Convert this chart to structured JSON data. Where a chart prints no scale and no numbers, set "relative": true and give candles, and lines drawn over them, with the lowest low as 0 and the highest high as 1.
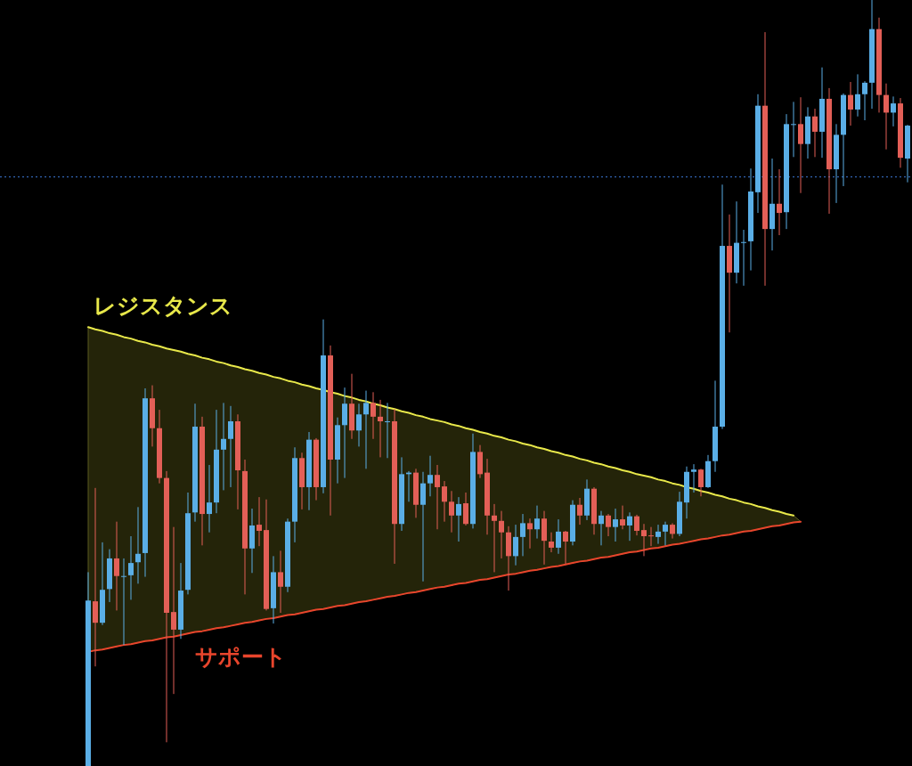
{
  "chart_data": {
    "type": "candlestick",
    "relative": true,
    "categories": [
      null,
      null,
      null,
      null,
      null,
      null,
      null,
      null,
      null,
      null,
      null,
      null,
      null,
      null,
      null,
      null,
      null,
      null,
      null,
      null,
      null,
      null,
      null,
      null,
      null,
      null,
      null,
      null,
      null,
      null,
      null,
      null,
      null,
      null,
      null,
      null,
      null,
      null,
      null,
      null,
      null,
      null,
      null,
      null,
      null,
      null,
      null,
      null,
      null,
      null,
      null,
      null,
      null,
      null,
      null,
      null,
      null,
      null,
      null,
      null,
      null,
      null,
      null,
      null,
      null,
      null,
      null,
      null,
      null,
      null,
      null,
      null,
      null,
      null,
      null,
      null,
      null,
      null,
      null,
      null,
      null,
      null,
      null,
      null,
      null,
      null,
      null,
      null,
      null,
      null,
      null,
      null,
      null,
      null,
      null,
      null,
      null,
      null,
      null,
      null,
      null,
      null,
      null,
      null,
      null,
      null,
      null,
      null,
      null,
      null,
      null,
      null,
      null,
      null,
      null,
      null
    ],
    "ohlc": [
      [
        0,
        0.253,
        0,
        0.216
      ],
      [
        0.215,
        0.363,
        0.13,
        0.187
      ],
      [
        0.187,
        0.292,
        0.184,
        0.23
      ],
      [
        0.231,
        0.283,
        0.214,
        0.271
      ],
      [
        0.271,
        0.319,
        0.203,
        0.248
      ],
      [
        0.248,
        0.271,
        0.158,
        0.248
      ],
      [
        0.249,
        0.3,
        0.217,
        0.265
      ],
      [
        0.266,
        0.338,
        0.238,
        0.277
      ],
      [
        0.278,
        0.493,
        0.247,
        0.48
      ],
      [
        0.48,
        0.497,
        0.417,
        0.441
      ],
      [
        0.441,
        0.465,
        0.369,
        0.376
      ],
      [
        0.376,
        0.385,
        0.031,
        0.2
      ],
      [
        0.201,
        0.312,
        0.094,
        0.178
      ],
      [
        0.178,
        0.265,
        0.166,
        0.229
      ],
      [
        0.23,
        0.357,
        0.224,
        0.33
      ],
      [
        0.331,
        0.473,
        0.319,
        0.443
      ],
      [
        0.443,
        0.456,
        0.288,
        0.329
      ],
      [
        0.329,
        0.393,
        0.305,
        0.344
      ],
      [
        0.344,
        0.465,
        0.33,
        0.413
      ],
      [
        0.413,
        0.474,
        0.36,
        0.427
      ],
      [
        0.427,
        0.47,
        0.364,
        0.45
      ],
      [
        0.45,
        0.459,
        0.335,
        0.386
      ],
      [
        0.385,
        0.4,
        0.224,
        0.284
      ],
      [
        0.284,
        0.336,
        0.252,
        0.314
      ],
      [
        0.315,
        0.351,
        0.287,
        0.307
      ],
      [
        0.308,
        0.348,
        0.203,
        0.205
      ],
      [
        0.206,
        0.274,
        0.186,
        0.253
      ],
      [
        0.253,
        0.281,
        0.2,
        0.234
      ],
      [
        0.234,
        0.323,
        0.227,
        0.319
      ],
      [
        0.319,
        0.416,
        0.292,
        0.402
      ],
      [
        0.402,
        0.409,
        0.335,
        0.364
      ],
      [
        0.364,
        0.436,
        0.334,
        0.426
      ],
      [
        0.426,
        0.428,
        0.347,
        0.364
      ],
      [
        0.364,
        0.583,
        0.356,
        0.536
      ],
      [
        0.536,
        0.549,
        0.327,
        0.4
      ],
      [
        0.4,
        0.455,
        0.369,
        0.445
      ],
      [
        0.445,
        0.494,
        0.376,
        0.473
      ],
      [
        0.473,
        0.512,
        0.427,
        0.438
      ],
      [
        0.438,
        0.473,
        0.417,
        0.459
      ],
      [
        0.459,
        0.49,
        0.388,
        0.474
      ],
      [
        0.474,
        0.488,
        0.427,
        0.456
      ],
      [
        0.456,
        0.478,
        0.403,
        0.45
      ],
      [
        0.45,
        0.474,
        0.402,
        0.45
      ],
      [
        0.45,
        0.466,
        0.264,
        0.316
      ],
      [
        0.316,
        0.403,
        0.307,
        0.381
      ],
      [
        0.381,
        0.385,
        0.345,
        0.383
      ],
      [
        0.383,
        0.388,
        0.324,
        0.341
      ],
      [
        0.341,
        0.384,
        0.241,
        0.369
      ],
      [
        0.369,
        0.405,
        0.352,
        0.38
      ],
      [
        0.38,
        0.393,
        0.309,
        0.364
      ],
      [
        0.365,
        0.372,
        0.319,
        0.345
      ],
      [
        0.345,
        0.359,
        0.305,
        0.327
      ],
      [
        0.327,
        0.351,
        0.293,
        0.342
      ],
      [
        0.343,
        0.357,
        0.314,
        0.316
      ],
      [
        0.316,
        0.434,
        0.31,
        0.41
      ],
      [
        0.41,
        0.419,
        0.376,
        0.381
      ],
      [
        0.383,
        0.401,
        0.302,
        0.327
      ],
      [
        0.327,
        0.342,
        0.253,
        0.32
      ],
      [
        0.32,
        0.333,
        0.271,
        0.305
      ],
      [
        0.305,
        0.313,
        0.229,
        0.274
      ],
      [
        0.274,
        0.315,
        0.262,
        0.299
      ],
      [
        0.299,
        0.329,
        0.274,
        0.317
      ],
      [
        0.317,
        0.323,
        0.284,
        0.309
      ],
      [
        0.309,
        0.34,
        0.297,
        0.323
      ],
      [
        0.323,
        0.333,
        0.263,
        0.294
      ],
      [
        0.293,
        0.305,
        0.279,
        0.285
      ],
      [
        0.285,
        0.322,
        0.277,
        0.306
      ],
      [
        0.306,
        0.307,
        0.264,
        0.293
      ],
      [
        0.293,
        0.347,
        0.288,
        0.341
      ],
      [
        0.341,
        0.35,
        0.315,
        0.327
      ],
      [
        0.327,
        0.374,
        0.321,
        0.362
      ],
      [
        0.362,
        0.364,
        0.302,
        0.316
      ],
      [
        0.316,
        0.333,
        0.288,
        0.327
      ],
      [
        0.327,
        0.329,
        0.3,
        0.312
      ],
      [
        0.312,
        0.336,
        0.293,
        0.322
      ],
      [
        0.322,
        0.34,
        0.309,
        0.314
      ],
      [
        0.314,
        0.331,
        0.294,
        0.326
      ],
      [
        0.326,
        0.328,
        0.301,
        0.307
      ],
      [
        0.308,
        0.316,
        0.274,
        0.3
      ],
      [
        0.301,
        0.312,
        0.287,
        0.3
      ],
      [
        0.299,
        0.315,
        0.29,
        0.306
      ],
      [
        0.306,
        0.319,
        0.288,
        0.315
      ],
      [
        0.315,
        0.317,
        0.297,
        0.303
      ],
      [
        0.303,
        0.358,
        0.3,
        0.345
      ],
      [
        0.344,
        0.391,
        0.323,
        0.384
      ],
      [
        0.384,
        0.394,
        0.357,
        0.387
      ],
      [
        0.387,
        0.388,
        0.352,
        0.364
      ],
      [
        0.364,
        0.406,
        0.363,
        0.398
      ],
      [
        0.398,
        0.503,
        0.384,
        0.443
      ],
      [
        0.443,
        0.759,
        0.44,
        0.679
      ],
      [
        0.679,
        0.72,
        0.566,
        0.644
      ],
      [
        0.644,
        0.737,
        0.63,
        0.683
      ],
      [
        0.684,
        0.7,
        0.627,
        0.684
      ],
      [
        0.685,
        0.78,
        0.647,
        0.75
      ],
      [
        0.749,
        0.877,
        0.722,
        0.862
      ],
      [
        0.862,
        0.958,
        0.627,
        0.701
      ],
      [
        0.701,
        0.793,
        0.673,
        0.734
      ],
      [
        0.734,
        0.779,
        0.693,
        0.722
      ],
      [
        0.723,
        0.851,
        0.701,
        0.838
      ],
      [
        0.838,
        0.867,
        0.795,
        0.838
      ],
      [
        0.838,
        0.873,
        0.748,
        0.812
      ],
      [
        0.812,
        0.86,
        0.793,
        0.848
      ],
      [
        0.848,
        0.858,
        0.795,
        0.828
      ],
      [
        0.828,
        0.912,
        0.794,
        0.871
      ],
      [
        0.871,
        0.885,
        0.721,
        0.779
      ],
      [
        0.779,
        0.838,
        0.735,
        0.824
      ],
      [
        0.824,
        0.878,
        0.757,
        0.876
      ],
      [
        0.876,
        0.893,
        0.836,
        0.857
      ],
      [
        0.857,
        0.903,
        0.848,
        0.877
      ],
      [
        0.877,
        0.894,
        0.843,
        0.892
      ],
      [
        0.892,
        1,
        0.858,
        0.962
      ],
      [
        0.962,
        0.977,
        0.853,
        0.876
      ],
      [
        0.876,
        0.891,
        0.805,
        0.853
      ],
      [
        0.853,
        0.874,
        0.835,
        0.865
      ],
      [
        0.865,
        0.872,
        0.781,
        0.794
      ],
      [
        0.793,
        0.837,
        0.762,
        0.836
      ]
    ],
    "colors": [
      "#5aaee6",
      "#e35f57",
      "#5aaee6",
      "#5aaee6",
      "#e35f57",
      "#5aaee6",
      "#5aaee6",
      "#5aaee6",
      "#5aaee6",
      "#e35f57",
      "#e35f57",
      "#e35f57",
      "#e35f57",
      "#5aaee6",
      "#5aaee6",
      "#5aaee6",
      "#e35f57",
      "#5aaee6",
      "#5aaee6",
      "#5aaee6",
      "#5aaee6",
      "#e35f57",
      "#e35f57",
      "#5aaee6",
      "#e35f57",
      "#e35f57",
      "#5aaee6",
      "#e35f57",
      "#5aaee6",
      "#5aaee6",
      "#e35f57",
      "#5aaee6",
      "#e35f57",
      "#5aaee6",
      "#e35f57",
      "#5aaee6",
      "#5aaee6",
      "#e35f57",
      "#5aaee6",
      "#5aaee6",
      "#e35f57",
      "#e35f57",
      "#5aaee6",
      "#e35f57",
      "#5aaee6",
      "#5aaee6",
      "#e35f57",
      "#5aaee6",
      "#5aaee6",
      "#e35f57",
      "#e35f57",
      "#e35f57",
      "#5aaee6",
      "#e35f57",
      "#5aaee6",
      "#e35f57",
      "#e35f57",
      "#e35f57",
      "#e35f57",
      "#e35f57",
      "#5aaee6",
      "#5aaee6",
      "#e35f57",
      "#5aaee6",
      "#e35f57",
      "#e35f57",
      "#5aaee6",
      "#e35f57",
      "#5aaee6",
      "#e35f57",
      "#5aaee6",
      "#e35f57",
      "#5aaee6",
      "#e35f57",
      "#5aaee6",
      "#e35f57",
      "#5aaee6",
      "#e35f57",
      "#e35f57",
      "#e35f57",
      "#5aaee6",
      "#5aaee6",
      "#e35f57",
      "#5aaee6",
      "#5aaee6",
      "#5aaee6",
      "#e35f57",
      "#5aaee6",
      "#5aaee6",
      "#5aaee6",
      "#e35f57",
      "#5aaee6",
      "#5aaee6",
      "#5aaee6",
      "#5aaee6",
      "#e35f57",
      "#5aaee6",
      "#e35f57",
      "#5aaee6",
      "#5aaee6",
      "#e35f57",
      "#5aaee6",
      "#e35f57",
      "#5aaee6",
      "#e35f57",
      "#5aaee6",
      "#5aaee6",
      "#e35f57",
      "#5aaee6",
      "#5aaee6",
      "#5aaee6",
      "#e35f57",
      "#e35f57",
      "#5aaee6",
      "#e35f57",
      "#5aaee6"
    ],
    "series": [
      {
        "type": "line",
        "name": "レジスタンス",
        "color": "#e8e84a",
        "values": [
          0.573,
          0.57,
          0.568,
          0.565,
          0.563,
          0.56,
          0.558,
          0.555,
          0.553,
          0.55,
          0.548,
          0.545,
          0.543,
          0.541,
          0.538,
          0.536,
          0.533,
          0.531,
          0.528,
          0.526,
          0.523,
          0.521,
          0.518,
          0.516,
          0.513,
          0.511,
          0.508,
          0.506,
          0.503,
          0.501,
          0.498,
          0.496,
          0.493,
          0.491,
          0.488,
          0.486,
          0.483,
          0.481,
          0.478,
          0.476,
          0.473,
          0.471,
          0.468,
          0.466,
          0.463,
          0.461,
          0.458,
          0.456,
          0.453,
          0.451,
          0.449,
          0.446,
          0.444,
          0.441,
          0.439,
          0.436,
          0.434,
          0.431,
          0.429,
          0.426,
          0.424,
          0.421,
          0.419,
          0.416,
          0.414,
          0.411,
          0.409,
          0.406,
          0.404,
          0.401,
          0.399,
          0.396,
          0.394,
          0.391,
          0.389,
          0.386,
          0.384,
          0.381,
          0.379,
          0.377,
          0.374,
          0.372,
          0.369,
          0.367,
          0.364,
          0.362,
          0.359,
          0.357,
          0.354,
          0.352,
          0.349,
          0.347,
          0.344,
          0.342,
          0.339,
          0.337,
          0.334,
          0.332,
          0.329,
          0.327,
          null,
          null,
          null,
          null,
          null,
          null,
          null,
          null,
          null,
          null,
          null,
          null,
          null,
          null,
          null,
          null
        ]
      },
      {
        "type": "line",
        "name": "サポート",
        "color": "#e8452c",
        "values": [
          0.149,
          0.151,
          0.152,
          0.154,
          0.156,
          0.158,
          0.159,
          0.161,
          0.163,
          0.164,
          0.166,
          0.168,
          0.169,
          0.171,
          0.173,
          0.175,
          0.176,
          0.178,
          0.18,
          0.181,
          0.183,
          0.185,
          0.187,
          0.188,
          0.19,
          0.192,
          0.193,
          0.195,
          0.197,
          0.198,
          0.2,
          0.202,
          0.204,
          0.205,
          0.207,
          0.209,
          0.21,
          0.212,
          0.214,
          0.215,
          0.217,
          0.219,
          0.221,
          0.222,
          0.224,
          0.226,
          0.227,
          0.229,
          0.231,
          0.233,
          0.234,
          0.236,
          0.238,
          0.239,
          0.241,
          0.243,
          0.244,
          0.246,
          0.248,
          0.25,
          0.251,
          0.253,
          0.255,
          0.256,
          0.258,
          0.26,
          0.261,
          0.263,
          0.265,
          0.267,
          0.268,
          0.27,
          0.272,
          0.273,
          0.275,
          0.277,
          0.279,
          0.28,
          0.282,
          0.284,
          0.285,
          0.287,
          0.289,
          0.29,
          0.292,
          0.294,
          0.296,
          0.297,
          0.299,
          0.301,
          0.302,
          0.304,
          0.306,
          0.307,
          0.309,
          0.311,
          0.313,
          0.314,
          0.316,
          0.318,
          0.319,
          null,
          null,
          null,
          null,
          null,
          null,
          null,
          null,
          null,
          null,
          null,
          null,
          null,
          null,
          null
        ]
      }
    ],
    "ref_lines": [
      {
        "axis": "y",
        "value": 0.769,
        "color": "#3d7bd9",
        "line_style": "dotted"
      }
    ]
  }
}
